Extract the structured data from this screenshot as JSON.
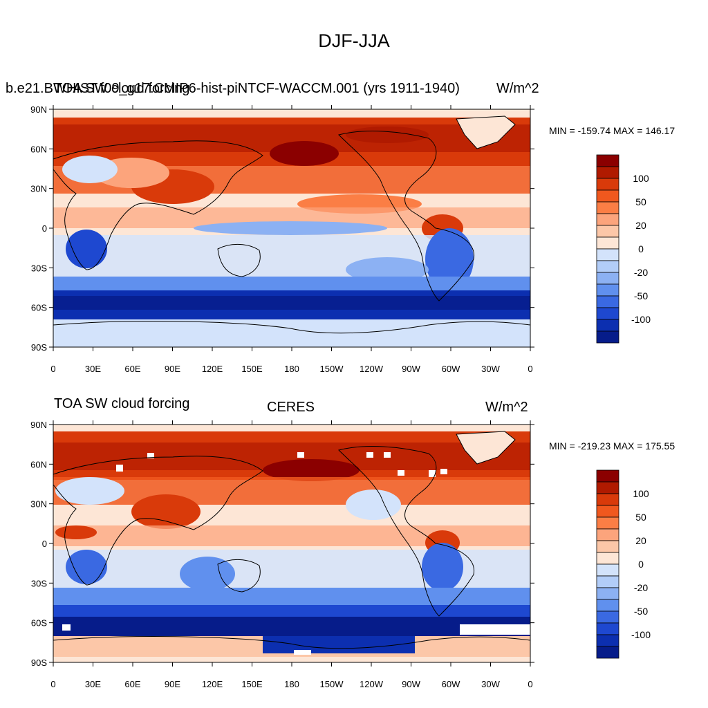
{
  "figure": {
    "title": "DJF-JJA"
  },
  "panels": [
    {
      "left_title_a": "b.e21.BWHIST.f09_g17.CMIP6-hist-piNTCF-WACCM.001 (yrs 1911-1940)",
      "left_title_b": "TOA SW cloud forcing",
      "center_title": "",
      "units": "W/m^2",
      "minmax": "MIN = -159.74  MAX = 146.17"
    },
    {
      "left_title_a": "",
      "left_title_b": "TOA SW cloud forcing",
      "center_title": "CERES",
      "units": "W/m^2",
      "minmax": "MIN = -219.23  MAX = 175.55"
    }
  ],
  "axes": {
    "lat_labels": [
      "90N",
      "60N",
      "30N",
      "0",
      "30S",
      "60S",
      "90S"
    ],
    "lon_labels": [
      "0",
      "30E",
      "60E",
      "90E",
      "120E",
      "150E",
      "180",
      "150W",
      "120W",
      "90W",
      "60W",
      "30W",
      "0"
    ]
  },
  "colorbar": {
    "labels": [
      "100",
      "50",
      "20",
      "0",
      "-20",
      "-50",
      "-100"
    ],
    "colors": [
      "#8b0000",
      "#b01a00",
      "#d93a0a",
      "#f0581e",
      "#fb7e45",
      "#fca47c",
      "#fcc7a8",
      "#fde6d6",
      "#d3e3fb",
      "#b2cdf8",
      "#8cb1f3",
      "#6090ee",
      "#3a69e2",
      "#1e48d0",
      "#0c2fb0",
      "#061c8a"
    ]
  },
  "chart_data": [
    {
      "type": "heatmap",
      "title": "TOA SW cloud forcing",
      "units": "W/m^2",
      "min": -159.74,
      "max": 146.17,
      "colorbar_levels": [
        100,
        50,
        20,
        0,
        -20,
        -50,
        -100
      ],
      "lat_range": [
        -90,
        90
      ],
      "lon_range": [
        0,
        360
      ]
    },
    {
      "type": "heatmap",
      "title": "CERES",
      "units": "W/m^2",
      "min": -219.23,
      "max": 175.55,
      "colorbar_levels": [
        100,
        50,
        20,
        0,
        -20,
        -50,
        -100
      ],
      "lat_range": [
        -90,
        90
      ],
      "lon_range": [
        0,
        360
      ]
    }
  ]
}
